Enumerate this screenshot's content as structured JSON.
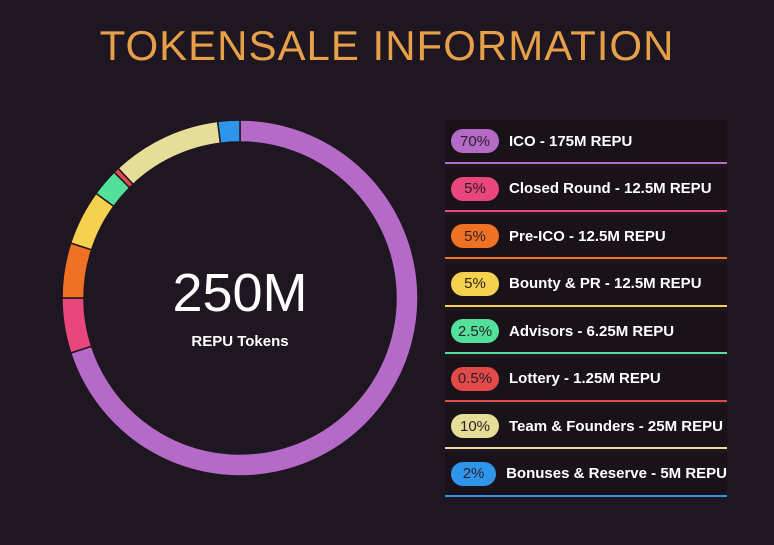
{
  "header": {
    "title": "TOKENSALE INFORMATION"
  },
  "colors": {
    "background": "#1e1620",
    "title": "#e8a048",
    "legend_bg": "#1a1219",
    "center_text": "#ffffff"
  },
  "center": {
    "value": "250M",
    "label": "REPU Tokens"
  },
  "chart_data": {
    "type": "pie",
    "variant": "donut",
    "title": "TOKENSALE INFORMATION",
    "total_label": "250M",
    "unit": "REPU Tokens",
    "slices": [
      {
        "percent_label": "70%",
        "value": 70,
        "label": "ICO - 175M REPU",
        "color": "#b56ac7"
      },
      {
        "percent_label": "5%",
        "value": 5,
        "label": "Closed Round - 12.5M REPU",
        "color": "#e8467c"
      },
      {
        "percent_label": "5%",
        "value": 5,
        "label": "Pre-ICO - 12.5M REPU",
        "color": "#ef7124"
      },
      {
        "percent_label": "5%",
        "value": 5,
        "label": "Bounty & PR - 12.5M REPU",
        "color": "#f6d14d"
      },
      {
        "percent_label": "2.5%",
        "value": 2.5,
        "label": "Advisors - 6.25M REPU",
        "color": "#53e09a"
      },
      {
        "percent_label": "0.5%",
        "value": 0.5,
        "label": "Lottery - 1.25M REPU",
        "color": "#e24a4a"
      },
      {
        "percent_label": "10%",
        "value": 10,
        "label": "Team & Founders - 25M REPU",
        "color": "#e6de98"
      },
      {
        "percent_label": "2%",
        "value": 2,
        "label": "Bonuses & Reserve - 5M REPU",
        "color": "#2e95ea"
      }
    ],
    "direction": "clockwise",
    "start_angle_deg": 0,
    "legend_position": "right"
  }
}
